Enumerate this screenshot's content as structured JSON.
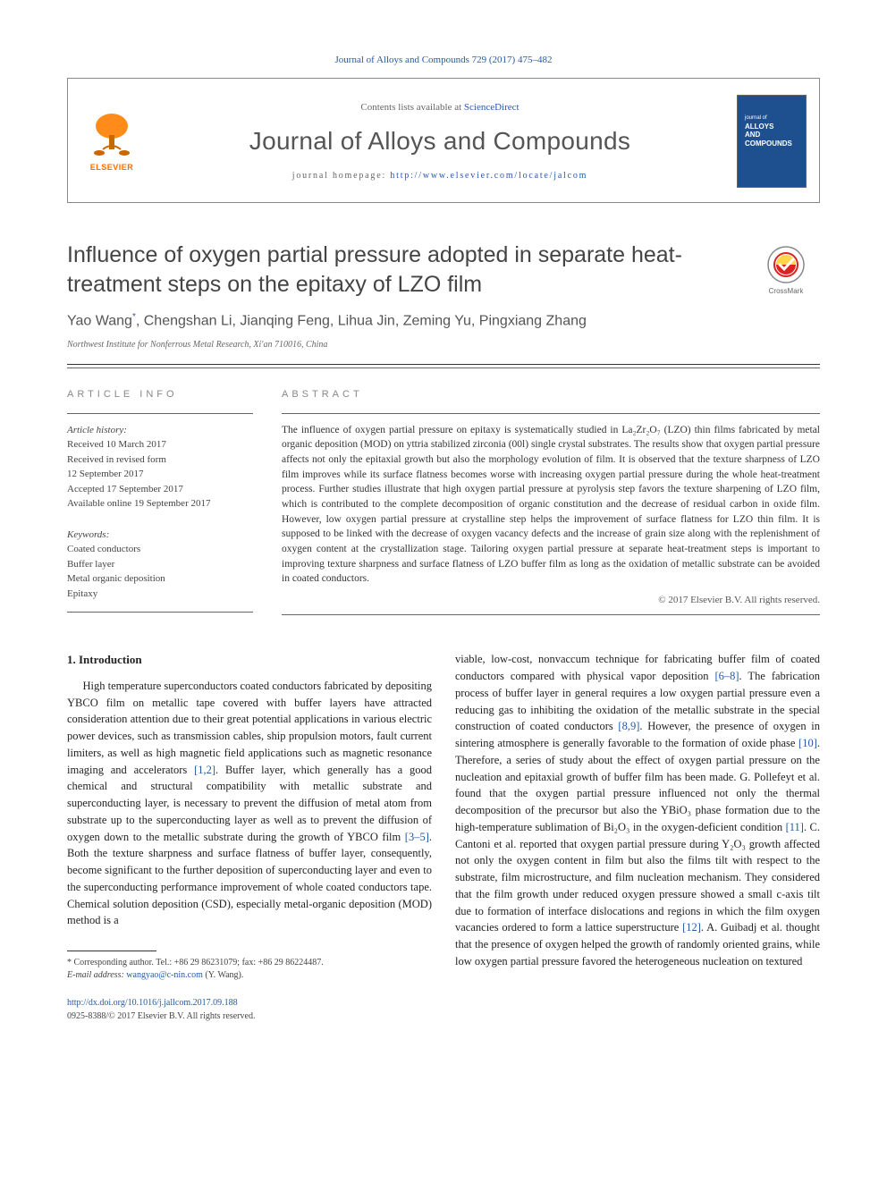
{
  "citation": "Journal of Alloys and Compounds 729 (2017) 475–482",
  "header": {
    "contents_prefix": "Contents lists available at ",
    "contents_link": "ScienceDirect",
    "journal_name": "Journal of Alloys and Compounds",
    "homepage_prefix": "journal homepage: ",
    "homepage_url": "http://www.elsevier.com/locate/jalcom",
    "publisher_name": "ELSEVIER",
    "cover_journal_label": "journal of",
    "cover_journal_title1": "ALLOYS",
    "cover_journal_title2": "AND COMPOUNDS"
  },
  "article": {
    "title": "Influence of oxygen partial pressure adopted in separate heat-treatment steps on the epitaxy of LZO film",
    "authors_html": "Yao Wang<sup>*</sup>, Chengshan Li, Jianqing Feng, Lihua Jin, Zeming Yu, Pingxiang Zhang",
    "affiliation": "Northwest Institute for Nonferrous Metal Research, Xi'an 710016, China",
    "crossmark_label": "CrossMark"
  },
  "info": {
    "label": "ARTICLE INFO",
    "history_label": "Article history:",
    "history": [
      "Received 10 March 2017",
      "Received in revised form",
      "12 September 2017",
      "Accepted 17 September 2017",
      "Available online 19 September 2017"
    ],
    "keywords_label": "Keywords:",
    "keywords": [
      "Coated conductors",
      "Buffer layer",
      "Metal organic deposition",
      "Epitaxy"
    ]
  },
  "abstract": {
    "label": "ABSTRACT",
    "text": "The influence of oxygen partial pressure on epitaxy is systematically studied in La₂Zr₂O₇ (LZO) thin films fabricated by metal organic deposition (MOD) on yttria stabilized zirconia (00l) single crystal substrates. The results show that oxygen partial pressure affects not only the epitaxial growth but also the morphology evolution of film. It is observed that the texture sharpness of LZO film improves while its surface flatness becomes worse with increasing oxygen partial pressure during the whole heat-treatment process. Further studies illustrate that high oxygen partial pressure at pyrolysis step favors the texture sharpening of LZO film, which is contributed to the complete decomposition of organic constitution and the decrease of residual carbon in oxide film. However, low oxygen partial pressure at crystalline step helps the improvement of surface flatness for LZO thin film. It is supposed to be linked with the decrease of oxygen vacancy defects and the increase of grain size along with the replenishment of oxygen content at the crystallization stage. Tailoring oxygen partial pressure at separate heat-treatment steps is important to improving texture sharpness and surface flatness of LZO buffer film as long as the oxidation of metallic substrate can be avoided in coated conductors.",
    "copyright": "© 2017 Elsevier B.V. All rights reserved."
  },
  "body": {
    "section_number": "1.",
    "section_title": "Introduction",
    "col1_para1": "High temperature superconductors coated conductors fabricated by depositing YBCO film on metallic tape covered with buffer layers have attracted consideration attention due to their great potential applications in various electric power devices, such as transmission cables, ship propulsion motors, fault current limiters, as well as high magnetic field applications such as magnetic resonance imaging and accelerators [1,2]. Buffer layer, which generally has a good chemical and structural compatibility with metallic substrate and superconducting layer, is necessary to prevent the diffusion of metal atom from substrate up to the superconducting layer as well as to prevent the diffusion of oxygen down to the metallic substrate during the growth of YBCO film [3–5]. Both the texture sharpness and surface flatness of buffer layer, consequently, become significant to the further deposition of superconducting layer and even to the superconducting performance improvement of whole coated conductors tape. Chemical solution deposition (CSD), especially metal-organic deposition (MOD) method is a",
    "col2_para1": "viable, low-cost, nonvaccum technique for fabricating buffer film of coated conductors compared with physical vapor deposition [6–8]. The fabrication process of buffer layer in general requires a low oxygen partial pressure even a reducing gas to inhibiting the oxidation of the metallic substrate in the special construction of coated conductors [8,9]. However, the presence of oxygen in sintering atmosphere is generally favorable to the formation of oxide phase [10]. Therefore, a series of study about the effect of oxygen partial pressure on the nucleation and epitaxial growth of buffer film has been made. G. Pollefeyt et al. found that the oxygen partial pressure influenced not only the thermal decomposition of the precursor but also the YBiO₃ phase formation due to the high-temperature sublimation of Bi₂O₃ in the oxygen-deficient condition [11]. C. Cantoni et al. reported that oxygen partial pressure during Y₂O₃ growth affected not only the oxygen content in film but also the films tilt with respect to the substrate, film microstructure, and film nucleation mechanism. They considered that the film growth under reduced oxygen pressure showed a small c-axis tilt due to formation of interface dislocations and regions in which the film oxygen vacancies ordered to form a lattice superstructure [12]. A. Guibadj et al. thought that the presence of oxygen helped the growth of randomly oriented grains, while low oxygen partial pressure favored the heterogeneous nucleation on textured",
    "refs": {
      "r1_2": "[1,2]",
      "r3_5": "[3–5]",
      "r6_8": "[6–8]",
      "r8_9": "[8,9]",
      "r10": "[10]",
      "r11": "[11]",
      "r12": "[12]"
    }
  },
  "footnotes": {
    "corresponding": "* Corresponding author. Tel.: +86 29 86231079; fax: +86 29 86224487.",
    "email_label": "E-mail address: ",
    "email": "wangyao@c-nin.com",
    "email_suffix": " (Y. Wang)."
  },
  "bottom": {
    "doi": "http://dx.doi.org/10.1016/j.jallcom.2017.09.188",
    "issn_copyright": "0925-8388/© 2017 Elsevier B.V. All rights reserved."
  }
}
